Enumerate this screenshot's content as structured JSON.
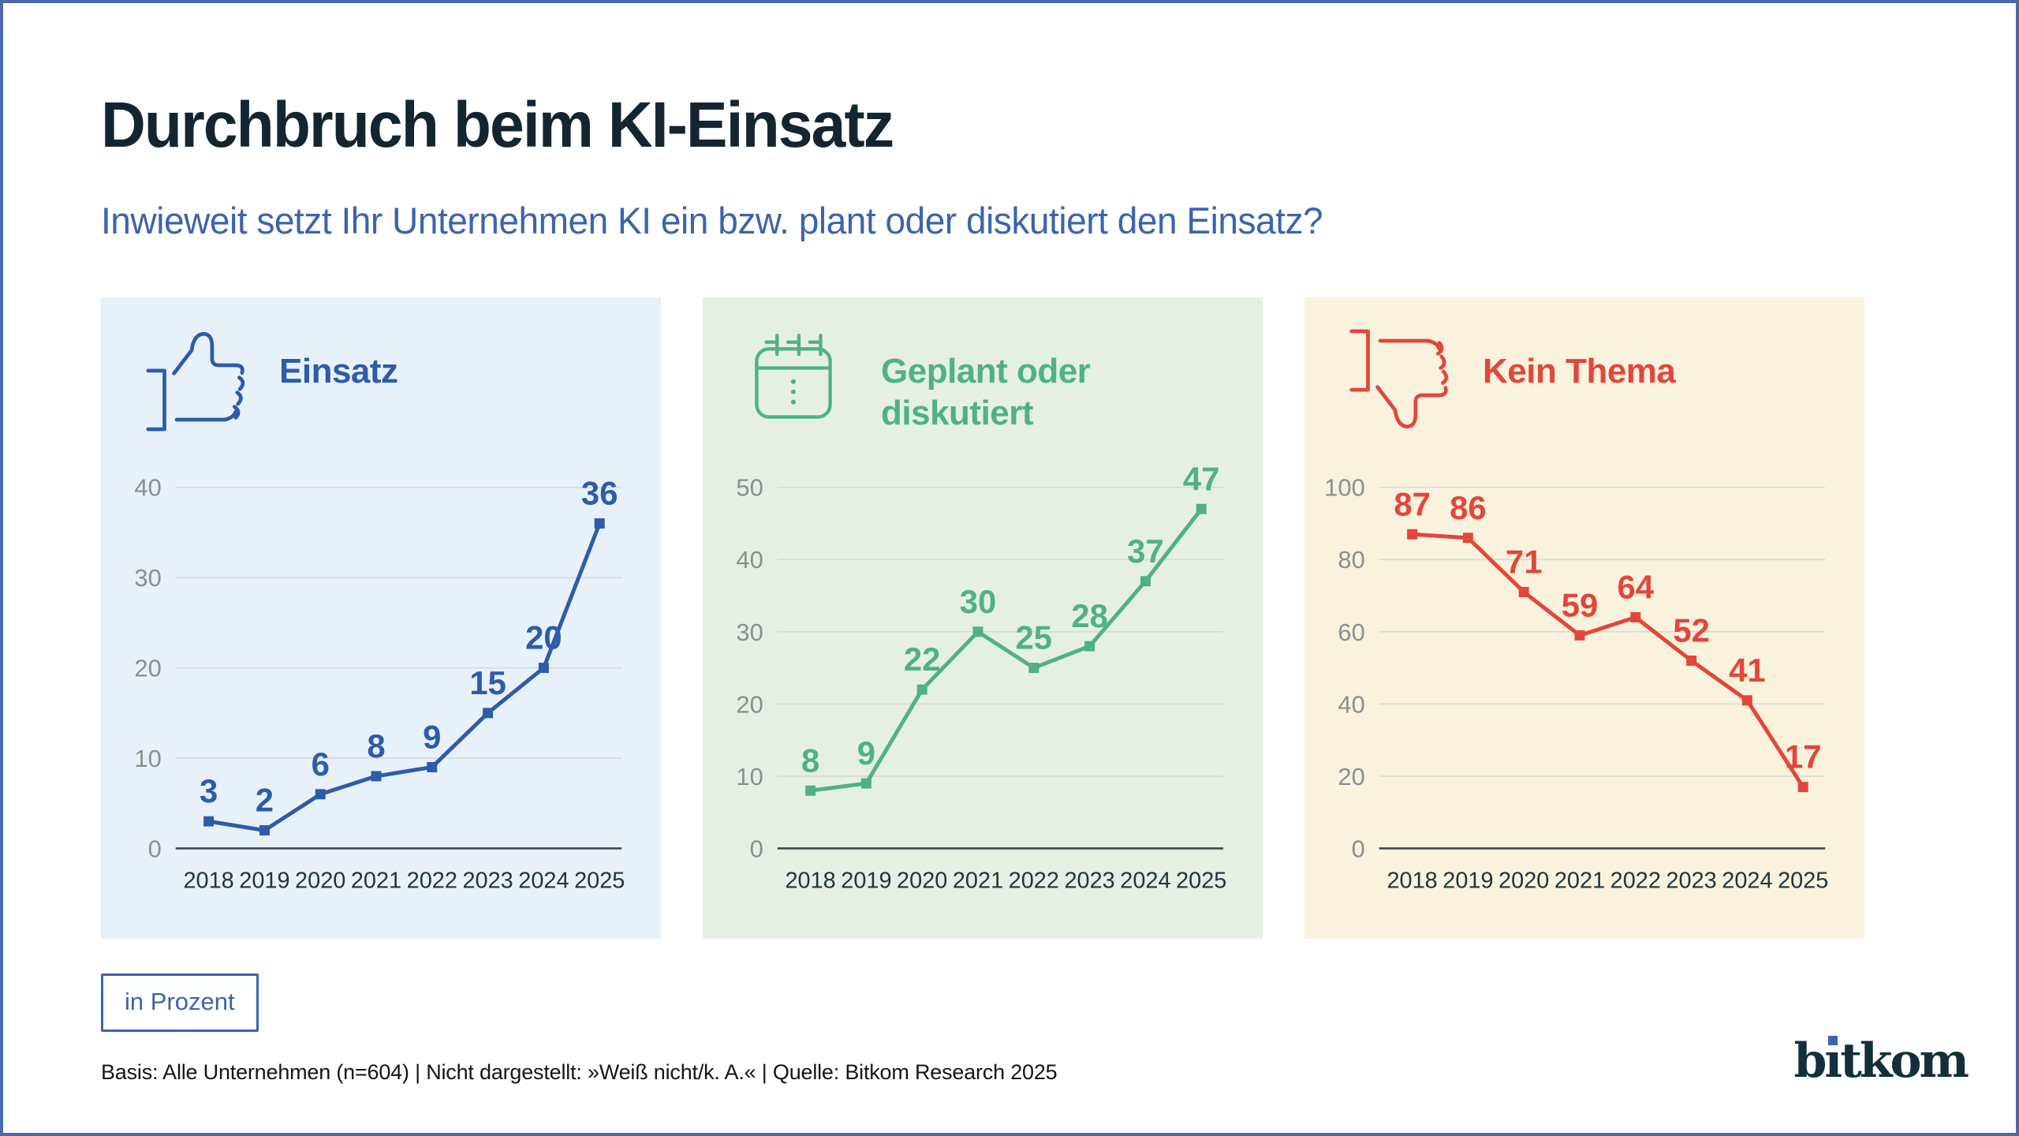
{
  "page": {
    "title": "Durchbruch beim KI-Einsatz",
    "subtitle": "Inwieweit setzt Ihr Unternehmen KI ein bzw. plant oder diskutiert den Einsatz?",
    "unit_label": "in Prozent",
    "basis": "Basis: Alle Unternehmen (n=604) | Nicht dargestellt: »Weiß nicht/k. A.« | Quelle: Bitkom Research 2025",
    "logo_pre": "b",
    "logo_i": "ı",
    "logo_post": "tkom"
  },
  "colors": {
    "frame": "#4b69a6",
    "title": "#132630",
    "subtitle": "#3b64ad",
    "grid": "#d9d9d6",
    "axis": "#40484b",
    "tick_label": "#8a9092",
    "x_label": "#20353e",
    "footer_text": "#151515",
    "logo": "#12303a",
    "logo_dot": "#3b64ad"
  },
  "chart_data": [
    {
      "type": "line",
      "title": "Einsatz",
      "icon": "thumbs-up-icon",
      "accent": "#2d5ca8",
      "panel_bg": "#e8f1f9",
      "categories": [
        "2018",
        "2019",
        "2020",
        "2021",
        "2022",
        "2023",
        "2024",
        "2025"
      ],
      "values": [
        3,
        2,
        6,
        8,
        9,
        15,
        20,
        36
      ],
      "ylim": [
        0,
        40
      ],
      "yticks": [
        0,
        10,
        20,
        30,
        40
      ],
      "xlabel": "",
      "ylabel": "",
      "unit": "percent",
      "grid": true,
      "legend": false
    },
    {
      "type": "line",
      "title": "Geplant oder diskutiert",
      "icon": "calendar-icon",
      "accent": "#4fb283",
      "panel_bg": "#e6efe4",
      "categories": [
        "2018",
        "2019",
        "2020",
        "2021",
        "2022",
        "2023",
        "2024",
        "2025"
      ],
      "values": [
        8,
        9,
        22,
        30,
        25,
        28,
        37,
        47
      ],
      "ylim": [
        0,
        50
      ],
      "yticks": [
        0,
        10,
        20,
        30,
        40,
        50
      ],
      "xlabel": "",
      "ylabel": "",
      "unit": "percent",
      "grid": true,
      "legend": false
    },
    {
      "type": "line",
      "title": "Kein Thema",
      "icon": "thumbs-down-icon",
      "accent": "#e2463c",
      "panel_bg": "#f9f2dc",
      "categories": [
        "2018",
        "2019",
        "2020",
        "2021",
        "2022",
        "2023",
        "2024",
        "2025"
      ],
      "values": [
        87,
        86,
        71,
        59,
        64,
        52,
        41,
        17
      ],
      "ylim": [
        0,
        100
      ],
      "yticks": [
        0,
        20,
        40,
        60,
        80,
        100
      ],
      "xlabel": "",
      "ylabel": "",
      "unit": "percent",
      "grid": true,
      "legend": false
    }
  ]
}
